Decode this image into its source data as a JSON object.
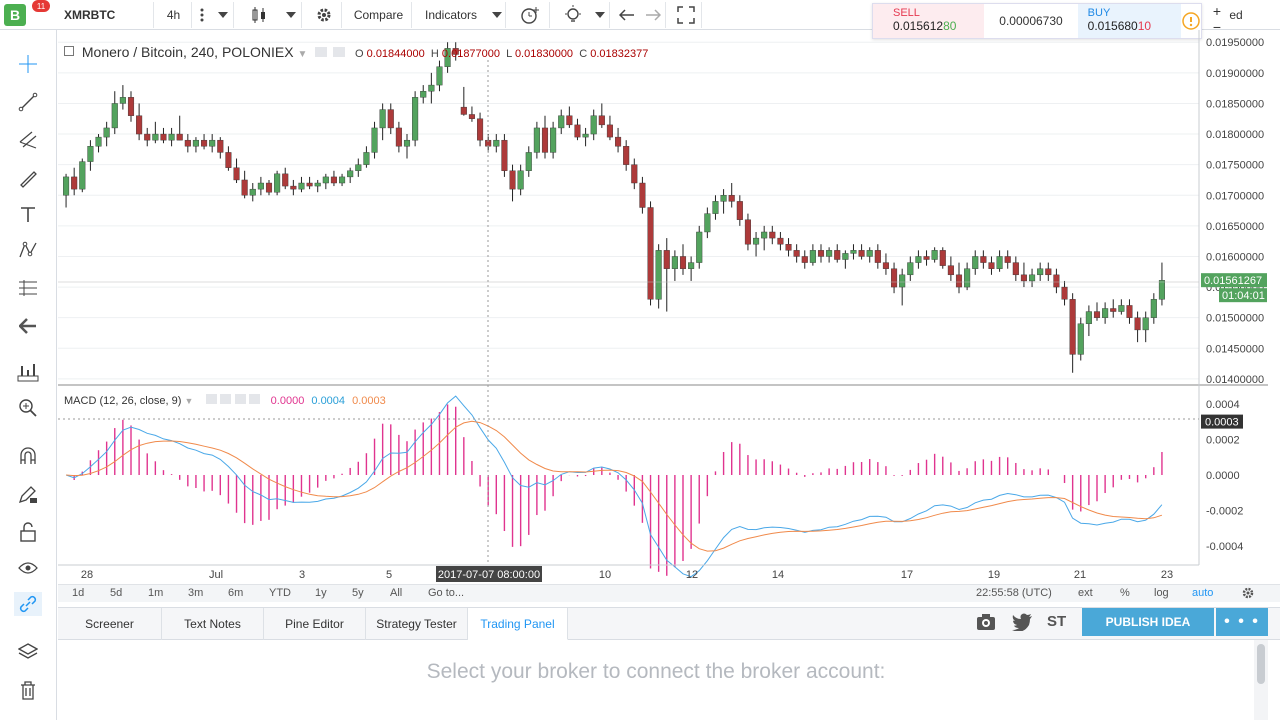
{
  "toolbar": {
    "logo": "B",
    "badge": "11",
    "symbol": "XMRBTC",
    "interval": "4h",
    "compare": "Compare",
    "indicators": "Indicators",
    "partial": "ed"
  },
  "pricebox": {
    "sell_label": "SELL",
    "sell_main": "0.015612",
    "sell_tail": "80",
    "spread": "0.00006730",
    "buy_label": "BUY",
    "buy_main": "0.015680",
    "buy_tail": "10"
  },
  "legend": {
    "title": "Monero / Bitcoin, 240, POLONIEX",
    "o_label": "O",
    "o_val": "0.01844000",
    "h_label": "H",
    "h_val": "0.01877000",
    "l_label": "L",
    "l_val": "0.01830000",
    "c_label": "C",
    "c_val": "0.01832377"
  },
  "macd": {
    "title": "MACD (12, 26, close, 9)",
    "hist": "0.0000",
    "macd": "0.0004",
    "signal": "0.0003"
  },
  "price_axis": {
    "labels": [
      "0.01950000",
      "0.01900000",
      "0.01850000",
      "0.01800000",
      "0.01750000",
      "0.01700000",
      "0.01650000",
      "0.01600000",
      "0.01550000",
      "0.01500000",
      "0.01450000",
      "0.01400000"
    ],
    "current": "0.01561267",
    "countdown": "01:04:01"
  },
  "macd_axis": {
    "labels": [
      "0.0004",
      "0.0002",
      "0.0000",
      "-0.0002",
      "-0.0004"
    ],
    "current": "0.0003"
  },
  "time_axis": {
    "labels": [
      "28",
      "Jul",
      "3",
      "5",
      "10",
      "12",
      "14",
      "17",
      "19",
      "21",
      "23"
    ],
    "crosshair": "2017-07-07 08:00:00"
  },
  "interval_bar": {
    "items": [
      "1d",
      "5d",
      "1m",
      "3m",
      "6m",
      "YTD",
      "1y",
      "5y",
      "All",
      "Go to..."
    ],
    "clock": "22:55:58 (UTC)",
    "ext": "ext",
    "pct": "%",
    "log": "log",
    "auto": "auto"
  },
  "bottom_tabs": [
    "Screener",
    "Text Notes",
    "Pine Editor",
    "Strategy Tester",
    "Trading Panel"
  ],
  "publish_label": "PUBLISH IDEA",
  "publish_more": "• • •",
  "social": {
    "st": "ST"
  },
  "panel_message": "Select your broker to connect the broker account:",
  "colors": {
    "up": "#53a35e",
    "down": "#ad3a3a",
    "macd_line": "#4aa8e8",
    "signal_line": "#f08a4b",
    "histogram": "#e0348f",
    "accent": "#2196f3"
  },
  "chart_data": {
    "type": "candlestick",
    "candles": [
      [
        0.017,
        0.01735,
        0.0168,
        0.0173
      ],
      [
        0.0173,
        0.01745,
        0.017,
        0.0171
      ],
      [
        0.0171,
        0.0176,
        0.01705,
        0.01755
      ],
      [
        0.01755,
        0.0179,
        0.0174,
        0.0178
      ],
      [
        0.0178,
        0.018,
        0.0177,
        0.01795
      ],
      [
        0.01795,
        0.0182,
        0.0178,
        0.0181
      ],
      [
        0.0181,
        0.0187,
        0.018,
        0.0185
      ],
      [
        0.0185,
        0.0188,
        0.0184,
        0.0186
      ],
      [
        0.0186,
        0.0187,
        0.0182,
        0.0183
      ],
      [
        0.0183,
        0.0185,
        0.0179,
        0.018
      ],
      [
        0.018,
        0.0181,
        0.0178,
        0.0179
      ],
      [
        0.0179,
        0.0182,
        0.01785,
        0.018
      ],
      [
        0.018,
        0.0181,
        0.01785,
        0.0179
      ],
      [
        0.0179,
        0.0181,
        0.0178,
        0.018
      ],
      [
        0.018,
        0.0183,
        0.0179,
        0.0179
      ],
      [
        0.0179,
        0.018,
        0.0177,
        0.0178
      ],
      [
        0.0178,
        0.01795,
        0.0177,
        0.0179
      ],
      [
        0.0179,
        0.018,
        0.01775,
        0.0178
      ],
      [
        0.0178,
        0.018,
        0.0177,
        0.0179
      ],
      [
        0.0179,
        0.01795,
        0.0176,
        0.0177
      ],
      [
        0.0177,
        0.0178,
        0.0174,
        0.01745
      ],
      [
        0.01745,
        0.0176,
        0.0172,
        0.01725
      ],
      [
        0.01725,
        0.0174,
        0.01695,
        0.017
      ],
      [
        0.017,
        0.0172,
        0.0169,
        0.0171
      ],
      [
        0.0171,
        0.0173,
        0.017,
        0.0172
      ],
      [
        0.0172,
        0.01725,
        0.017,
        0.01705
      ],
      [
        0.01705,
        0.0174,
        0.017,
        0.01735
      ],
      [
        0.01735,
        0.01745,
        0.0171,
        0.01715
      ],
      [
        0.01715,
        0.01725,
        0.017,
        0.0171
      ],
      [
        0.0171,
        0.0173,
        0.01705,
        0.0172
      ],
      [
        0.0172,
        0.0173,
        0.0171,
        0.01715
      ],
      [
        0.01715,
        0.01725,
        0.01705,
        0.0172
      ],
      [
        0.0172,
        0.01735,
        0.0171,
        0.0173
      ],
      [
        0.0173,
        0.0174,
        0.01715,
        0.0172
      ],
      [
        0.0172,
        0.01735,
        0.01715,
        0.0173
      ],
      [
        0.0173,
        0.01745,
        0.0172,
        0.0174
      ],
      [
        0.0174,
        0.0176,
        0.0173,
        0.0175
      ],
      [
        0.0175,
        0.0178,
        0.01745,
        0.0177
      ],
      [
        0.0177,
        0.0182,
        0.0176,
        0.0181
      ],
      [
        0.0181,
        0.0185,
        0.0179,
        0.0184
      ],
      [
        0.0184,
        0.0185,
        0.018,
        0.0181
      ],
      [
        0.0181,
        0.0182,
        0.0177,
        0.0178
      ],
      [
        0.0178,
        0.018,
        0.0176,
        0.0179
      ],
      [
        0.0179,
        0.0187,
        0.0178,
        0.0186
      ],
      [
        0.0186,
        0.0188,
        0.0185,
        0.0187
      ],
      [
        0.0187,
        0.019,
        0.0185,
        0.0188
      ],
      [
        0.0188,
        0.0192,
        0.0187,
        0.0191
      ],
      [
        0.0191,
        0.0195,
        0.019,
        0.0194
      ],
      [
        0.0194,
        0.0195,
        0.0192,
        0.0193
      ],
      [
        0.01844,
        0.01877,
        0.0183,
        0.01832
      ],
      [
        0.01832,
        0.01845,
        0.0182,
        0.01825
      ],
      [
        0.01825,
        0.01835,
        0.0178,
        0.0179
      ],
      [
        0.0179,
        0.018,
        0.0177,
        0.0178
      ],
      [
        0.0178,
        0.018,
        0.0177,
        0.0179
      ],
      [
        0.0179,
        0.018,
        0.0173,
        0.0174
      ],
      [
        0.0174,
        0.0175,
        0.0169,
        0.0171
      ],
      [
        0.0171,
        0.0175,
        0.017,
        0.0174
      ],
      [
        0.0174,
        0.0178,
        0.0173,
        0.0177
      ],
      [
        0.0177,
        0.0182,
        0.0176,
        0.0181
      ],
      [
        0.0181,
        0.0183,
        0.0176,
        0.0177
      ],
      [
        0.0177,
        0.0182,
        0.0176,
        0.0181
      ],
      [
        0.0181,
        0.0184,
        0.018,
        0.0183
      ],
      [
        0.0183,
        0.01845,
        0.0181,
        0.01815
      ],
      [
        0.01815,
        0.01825,
        0.0179,
        0.01795
      ],
      [
        0.01795,
        0.0181,
        0.0178,
        0.018
      ],
      [
        0.018,
        0.0184,
        0.0179,
        0.0183
      ],
      [
        0.0183,
        0.0185,
        0.0181,
        0.01815
      ],
      [
        0.01815,
        0.0183,
        0.0179,
        0.01795
      ],
      [
        0.01795,
        0.0181,
        0.0177,
        0.0178
      ],
      [
        0.0178,
        0.0179,
        0.0174,
        0.0175
      ],
      [
        0.0175,
        0.0176,
        0.0171,
        0.0172
      ],
      [
        0.0172,
        0.0173,
        0.0167,
        0.0168
      ],
      [
        0.0168,
        0.0169,
        0.0152,
        0.0153
      ],
      [
        0.0153,
        0.0162,
        0.01515,
        0.0161
      ],
      [
        0.0161,
        0.0163,
        0.0151,
        0.0158
      ],
      [
        0.0158,
        0.0161,
        0.0156,
        0.016
      ],
      [
        0.016,
        0.0162,
        0.0157,
        0.0158
      ],
      [
        0.0158,
        0.016,
        0.0156,
        0.0159
      ],
      [
        0.0159,
        0.0165,
        0.0158,
        0.0164
      ],
      [
        0.0164,
        0.0168,
        0.0163,
        0.0167
      ],
      [
        0.0167,
        0.017,
        0.0166,
        0.0169
      ],
      [
        0.0169,
        0.0171,
        0.0167,
        0.017
      ],
      [
        0.017,
        0.0172,
        0.0168,
        0.0169
      ],
      [
        0.0169,
        0.017,
        0.0165,
        0.0166
      ],
      [
        0.0166,
        0.0167,
        0.0161,
        0.0162
      ],
      [
        0.0162,
        0.0164,
        0.016,
        0.0163
      ],
      [
        0.0163,
        0.0165,
        0.0161,
        0.0164
      ],
      [
        0.0164,
        0.0165,
        0.0162,
        0.0163
      ],
      [
        0.0163,
        0.0164,
        0.0161,
        0.0162
      ],
      [
        0.0162,
        0.0163,
        0.016,
        0.0161
      ],
      [
        0.0161,
        0.0162,
        0.0159,
        0.016
      ],
      [
        0.016,
        0.0161,
        0.0158,
        0.0159
      ],
      [
        0.0159,
        0.0162,
        0.01585,
        0.0161
      ],
      [
        0.0161,
        0.0162,
        0.0159,
        0.016
      ],
      [
        0.016,
        0.01615,
        0.0159,
        0.0161
      ],
      [
        0.0161,
        0.0162,
        0.0159,
        0.01595
      ],
      [
        0.01595,
        0.0161,
        0.0158,
        0.01605
      ],
      [
        0.01605,
        0.0162,
        0.01595,
        0.0161
      ],
      [
        0.0161,
        0.0162,
        0.01595,
        0.016
      ],
      [
        0.016,
        0.01615,
        0.0159,
        0.0161
      ],
      [
        0.0161,
        0.0162,
        0.0158,
        0.0159
      ],
      [
        0.0159,
        0.01605,
        0.0157,
        0.0158
      ],
      [
        0.0158,
        0.0159,
        0.0154,
        0.0155
      ],
      [
        0.0155,
        0.0158,
        0.0152,
        0.0157
      ],
      [
        0.0157,
        0.016,
        0.0156,
        0.0159
      ],
      [
        0.0159,
        0.0161,
        0.0158,
        0.016
      ],
      [
        0.016,
        0.0161,
        0.01585,
        0.01595
      ],
      [
        0.01595,
        0.01615,
        0.0159,
        0.0161
      ],
      [
        0.0161,
        0.01615,
        0.0158,
        0.01585
      ],
      [
        0.01585,
        0.016,
        0.0156,
        0.0157
      ],
      [
        0.0157,
        0.0159,
        0.0154,
        0.0155
      ],
      [
        0.0155,
        0.0159,
        0.01545,
        0.0158
      ],
      [
        0.0158,
        0.0161,
        0.0157,
        0.016
      ],
      [
        0.016,
        0.0161,
        0.0158,
        0.0159
      ],
      [
        0.0159,
        0.016,
        0.0157,
        0.0158
      ],
      [
        0.0158,
        0.0161,
        0.01575,
        0.016
      ],
      [
        0.016,
        0.0161,
        0.0158,
        0.0159
      ],
      [
        0.0159,
        0.016,
        0.0156,
        0.0157
      ],
      [
        0.0157,
        0.0159,
        0.0155,
        0.0156
      ],
      [
        0.0156,
        0.0158,
        0.0155,
        0.0157
      ],
      [
        0.0157,
        0.0159,
        0.0156,
        0.0158
      ],
      [
        0.0158,
        0.0159,
        0.0156,
        0.0157
      ],
      [
        0.0157,
        0.0158,
        0.0154,
        0.0155
      ],
      [
        0.0155,
        0.0156,
        0.0152,
        0.0153
      ],
      [
        0.0153,
        0.0154,
        0.0141,
        0.0144
      ],
      [
        0.0144,
        0.015,
        0.0143,
        0.0149
      ],
      [
        0.0149,
        0.0152,
        0.0147,
        0.0151
      ],
      [
        0.0151,
        0.01525,
        0.01495,
        0.015
      ],
      [
        0.015,
        0.01525,
        0.0149,
        0.01515
      ],
      [
        0.01515,
        0.0153,
        0.015,
        0.0151
      ],
      [
        0.0151,
        0.0153,
        0.01505,
        0.0152
      ],
      [
        0.0152,
        0.0153,
        0.0149,
        0.015
      ],
      [
        0.015,
        0.0151,
        0.0146,
        0.0148
      ],
      [
        0.0148,
        0.0151,
        0.0146,
        0.015
      ],
      [
        0.015,
        0.0154,
        0.0149,
        0.0153
      ],
      [
        0.0153,
        0.0159,
        0.0152,
        0.01561
      ]
    ],
    "y_range": [
      0.0139,
      0.0197
    ],
    "macd_range": [
      -0.0005,
      0.0005
    ]
  }
}
